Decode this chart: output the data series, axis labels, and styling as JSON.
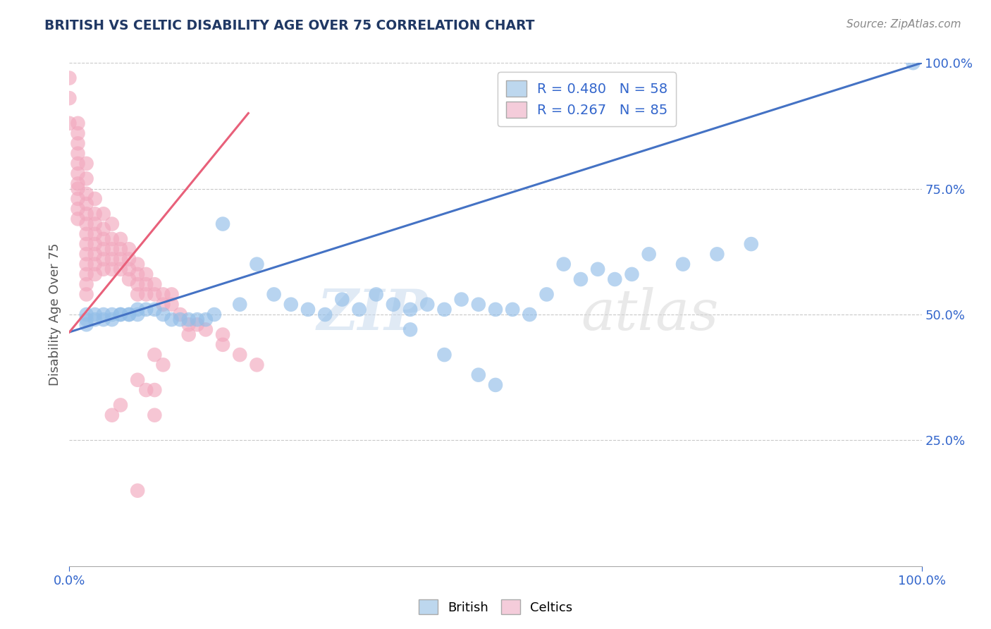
{
  "title": "BRITISH VS CELTIC DISABILITY AGE OVER 75 CORRELATION CHART",
  "source": "Source: ZipAtlas.com",
  "ylabel": "Disability Age Over 75",
  "xlim": [
    0,
    1
  ],
  "ylim": [
    0,
    1
  ],
  "british_R": 0.48,
  "british_N": 58,
  "celtic_R": 0.267,
  "celtic_N": 85,
  "blue_color": "#92BEE8",
  "pink_color": "#F2A8BE",
  "blue_line_color": "#4472C4",
  "pink_line_color": "#E8607A",
  "legend_blue_box": "#BDD7EE",
  "legend_pink_box": "#F4CCDA",
  "title_color": "#203864",
  "watermark_zip_color": "#C8DAEE",
  "watermark_atlas_color": "#D5D5D5",
  "british_x": [
    0.02,
    0.02,
    0.02,
    0.03,
    0.03,
    0.04,
    0.04,
    0.05,
    0.05,
    0.06,
    0.06,
    0.07,
    0.07,
    0.08,
    0.08,
    0.09,
    0.1,
    0.11,
    0.12,
    0.13,
    0.14,
    0.15,
    0.16,
    0.17,
    0.18,
    0.2,
    0.22,
    0.24,
    0.26,
    0.28,
    0.3,
    0.32,
    0.34,
    0.36,
    0.38,
    0.4,
    0.42,
    0.44,
    0.46,
    0.48,
    0.5,
    0.52,
    0.54,
    0.56,
    0.58,
    0.6,
    0.62,
    0.64,
    0.66,
    0.68,
    0.72,
    0.76,
    0.8,
    0.5,
    0.99,
    0.4,
    0.44,
    0.48
  ],
  "british_y": [
    0.5,
    0.49,
    0.48,
    0.5,
    0.49,
    0.5,
    0.49,
    0.5,
    0.49,
    0.5,
    0.5,
    0.5,
    0.5,
    0.51,
    0.5,
    0.51,
    0.51,
    0.5,
    0.49,
    0.49,
    0.49,
    0.49,
    0.49,
    0.5,
    0.68,
    0.52,
    0.6,
    0.54,
    0.52,
    0.51,
    0.5,
    0.53,
    0.51,
    0.54,
    0.52,
    0.51,
    0.52,
    0.51,
    0.53,
    0.52,
    0.51,
    0.51,
    0.5,
    0.54,
    0.6,
    0.57,
    0.59,
    0.57,
    0.58,
    0.62,
    0.6,
    0.62,
    0.64,
    0.36,
    1.0,
    0.47,
    0.42,
    0.38
  ],
  "celtic_x": [
    0.0,
    0.0,
    0.0,
    0.01,
    0.01,
    0.01,
    0.01,
    0.01,
    0.01,
    0.01,
    0.01,
    0.01,
    0.01,
    0.01,
    0.02,
    0.02,
    0.02,
    0.02,
    0.02,
    0.02,
    0.02,
    0.02,
    0.02,
    0.02,
    0.02,
    0.02,
    0.02,
    0.03,
    0.03,
    0.03,
    0.03,
    0.03,
    0.03,
    0.03,
    0.03,
    0.04,
    0.04,
    0.04,
    0.04,
    0.04,
    0.04,
    0.05,
    0.05,
    0.05,
    0.05,
    0.05,
    0.06,
    0.06,
    0.06,
    0.06,
    0.07,
    0.07,
    0.07,
    0.07,
    0.08,
    0.08,
    0.08,
    0.08,
    0.09,
    0.09,
    0.09,
    0.1,
    0.1,
    0.11,
    0.11,
    0.12,
    0.12,
    0.13,
    0.14,
    0.14,
    0.15,
    0.18,
    0.2,
    0.22,
    0.1,
    0.11,
    0.1,
    0.1,
    0.16,
    0.18,
    0.08,
    0.09,
    0.06,
    0.05,
    0.08
  ],
  "celtic_y": [
    0.97,
    0.93,
    0.88,
    0.88,
    0.86,
    0.84,
    0.82,
    0.8,
    0.78,
    0.76,
    0.75,
    0.73,
    0.71,
    0.69,
    0.8,
    0.77,
    0.74,
    0.72,
    0.7,
    0.68,
    0.66,
    0.64,
    0.62,
    0.6,
    0.58,
    0.56,
    0.54,
    0.73,
    0.7,
    0.68,
    0.66,
    0.64,
    0.62,
    0.6,
    0.58,
    0.7,
    0.67,
    0.65,
    0.63,
    0.61,
    0.59,
    0.68,
    0.65,
    0.63,
    0.61,
    0.59,
    0.65,
    0.63,
    0.61,
    0.59,
    0.63,
    0.61,
    0.59,
    0.57,
    0.6,
    0.58,
    0.56,
    0.54,
    0.58,
    0.56,
    0.54,
    0.56,
    0.54,
    0.54,
    0.52,
    0.54,
    0.52,
    0.5,
    0.48,
    0.46,
    0.48,
    0.44,
    0.42,
    0.4,
    0.42,
    0.4,
    0.35,
    0.3,
    0.47,
    0.46,
    0.37,
    0.35,
    0.32,
    0.3,
    0.15
  ],
  "blue_line_x0": 0.0,
  "blue_line_y0": 0.465,
  "blue_line_x1": 1.0,
  "blue_line_y1": 1.0,
  "pink_line_x0": 0.0,
  "pink_line_y0": 0.465,
  "pink_line_x1": 0.21,
  "pink_line_y1": 0.9
}
